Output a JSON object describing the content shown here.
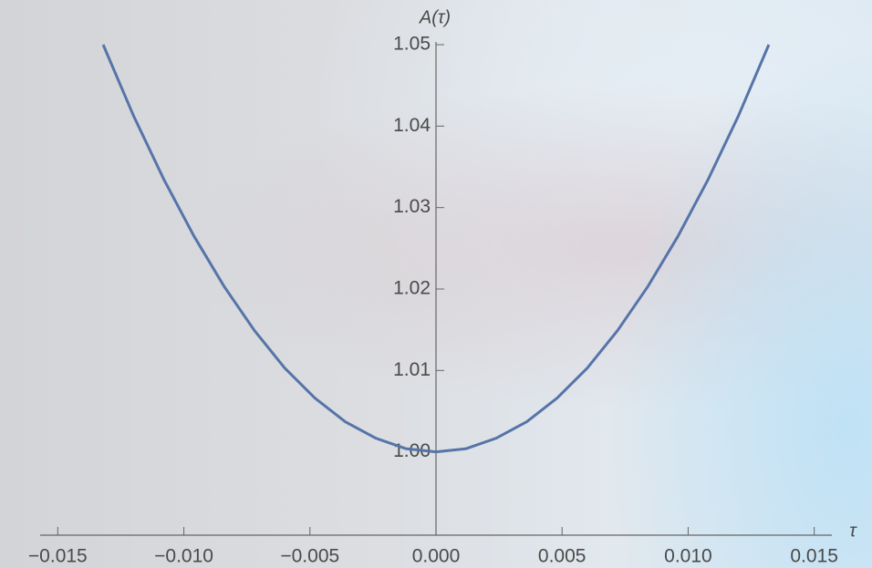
{
  "chart_data": {
    "type": "line",
    "x_label": "τ",
    "y_label": "A(τ)",
    "series": [
      {
        "color": "#5674a8",
        "x": [
          -0.0132,
          -0.012,
          -0.0108,
          -0.0096,
          -0.0084,
          -0.0072,
          -0.006,
          -0.0048,
          -0.0036,
          -0.0024,
          -0.0012,
          0,
          0.0012,
          0.0024,
          0.0036,
          0.0048,
          0.006,
          0.0072,
          0.0084,
          0.0096,
          0.0108,
          0.012,
          0.0132
        ],
        "values": [
          1.05,
          1.0413,
          1.0335,
          1.0265,
          1.0203,
          1.0149,
          1.0103,
          1.0066,
          1.0037,
          1.0017,
          1.0004,
          1.0,
          1.0004,
          1.0017,
          1.0037,
          1.0066,
          1.0103,
          1.0149,
          1.0203,
          1.0265,
          1.0335,
          1.0413,
          1.05
        ]
      }
    ],
    "xlim": [
      -0.0157,
      0.0157
    ],
    "ylim": [
      0.99,
      1.05
    ],
    "xticks": [
      {
        "value": -0.015,
        "label": "−0.015"
      },
      {
        "value": -0.01,
        "label": "−0.010"
      },
      {
        "value": -0.005,
        "label": "−0.005"
      },
      {
        "value": 0,
        "label": "0.000"
      },
      0.005,
      {
        "value": 0.01,
        "label": "0.010"
      },
      0.015
    ],
    "yticks": [
      {
        "value": 1,
        "label": "1.00"
      },
      1.01,
      1.02,
      1.03,
      1.04,
      1.05
    ]
  }
}
